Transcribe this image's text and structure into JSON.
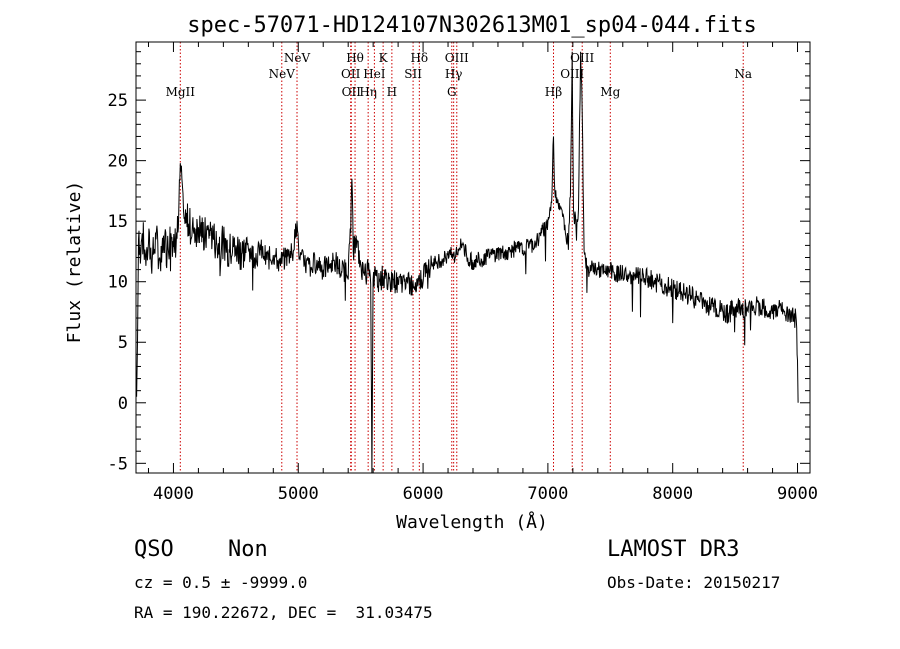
{
  "chart_data": {
    "type": "line",
    "title": "spec-57071-HD124107N302613M01_sp04-044.fits",
    "xlabel": "Wavelength (Å)",
    "ylabel": "Flux (relative)",
    "xlim": [
      3700,
      9100
    ],
    "ylim": [
      -5.8,
      29.8
    ],
    "xticks": [
      4000,
      5000,
      6000,
      7000,
      8000,
      9000
    ],
    "yticks": [
      -5,
      0,
      5,
      10,
      15,
      20,
      25
    ],
    "grid": false,
    "line_color": "#000000",
    "marker_color": "#cc0000",
    "lines": [
      {
        "label": "MgII",
        "x": 4055,
        "row": 3
      },
      {
        "label": "NeV",
        "x": 4868,
        "row": 2
      },
      {
        "label": "NeV",
        "x": 4990,
        "row": 1
      },
      {
        "label": "OII",
        "x": 5420,
        "row": 2
      },
      {
        "label": "OII",
        "x": 5425,
        "row": 3
      },
      {
        "label": "Hθ",
        "x": 5455,
        "row": 1
      },
      {
        "label": "Hη",
        "x": 5560,
        "row": 3
      },
      {
        "label": "HeI",
        "x": 5610,
        "row": 2
      },
      {
        "label": "K",
        "x": 5680,
        "row": 1
      },
      {
        "label": "H",
        "x": 5750,
        "row": 3
      },
      {
        "label": "SII",
        "x": 5920,
        "row": 2
      },
      {
        "label": "Hδ",
        "x": 5970,
        "row": 1
      },
      {
        "label": "OIII",
        "x": 6270,
        "row": 1
      },
      {
        "label": "Hγ",
        "x": 6245,
        "row": 2
      },
      {
        "label": "G",
        "x": 6230,
        "row": 3
      },
      {
        "label": "Hβ",
        "x": 7045,
        "row": 3
      },
      {
        "label": "OIII",
        "x": 7195,
        "row": 2
      },
      {
        "label": "OIII",
        "x": 7275,
        "row": 1
      },
      {
        "label": "Mg",
        "x": 7500,
        "row": 3
      },
      {
        "label": "Na",
        "x": 8565,
        "row": 2
      }
    ],
    "series": [
      {
        "values": [
          [
            3705,
            0.5
          ],
          [
            3712,
            5.0
          ],
          [
            3720,
            13.5
          ],
          [
            3735,
            11.5
          ],
          [
            3750,
            14.0
          ],
          [
            3775,
            12.2
          ],
          [
            3800,
            13.2
          ],
          [
            3830,
            11.8
          ],
          [
            3860,
            13.5
          ],
          [
            3890,
            12.0
          ],
          [
            3920,
            13.8
          ],
          [
            3950,
            12.5
          ],
          [
            3980,
            14.0
          ],
          [
            4010,
            13.0
          ],
          [
            4040,
            14.5
          ],
          [
            4055,
            19.8
          ],
          [
            4068,
            18.5
          ],
          [
            4085,
            15.2
          ],
          [
            4120,
            14.8
          ],
          [
            4160,
            14.2
          ],
          [
            4200,
            14.5
          ],
          [
            4250,
            13.8
          ],
          [
            4300,
            14.2
          ],
          [
            4350,
            13.0
          ],
          [
            4400,
            13.5
          ],
          [
            4450,
            12.5
          ],
          [
            4500,
            13.0
          ],
          [
            4550,
            12.4
          ],
          [
            4600,
            12.8
          ],
          [
            4650,
            12.0
          ],
          [
            4700,
            12.6
          ],
          [
            4750,
            11.8
          ],
          [
            4800,
            12.2
          ],
          [
            4850,
            11.5
          ],
          [
            4900,
            12.0
          ],
          [
            4960,
            12.5
          ],
          [
            4990,
            15.0
          ],
          [
            5010,
            12.0
          ],
          [
            5050,
            11.5
          ],
          [
            5100,
            11.2
          ],
          [
            5150,
            11.8
          ],
          [
            5200,
            11.0
          ],
          [
            5250,
            11.4
          ],
          [
            5300,
            11.6
          ],
          [
            5350,
            10.8
          ],
          [
            5400,
            11.2
          ],
          [
            5420,
            14.0
          ],
          [
            5430,
            18.5
          ],
          [
            5440,
            12.5
          ],
          [
            5460,
            13.5
          ],
          [
            5500,
            11.5
          ],
          [
            5530,
            10.5
          ],
          [
            5560,
            11.0
          ],
          [
            5580,
            9.8
          ],
          [
            5590,
            -5.8
          ],
          [
            5600,
            10.2
          ],
          [
            5620,
            10.5
          ],
          [
            5650,
            10.0
          ],
          [
            5680,
            10.5
          ],
          [
            5720,
            9.8
          ],
          [
            5760,
            10.2
          ],
          [
            5800,
            9.8
          ],
          [
            5850,
            10.0
          ],
          [
            5900,
            9.7
          ],
          [
            5950,
            10.2
          ],
          [
            5990,
            10.2
          ],
          [
            6030,
            11.4
          ],
          [
            6080,
            11.6
          ],
          [
            6130,
            11.8
          ],
          [
            6180,
            12.0
          ],
          [
            6220,
            12.2
          ],
          [
            6260,
            12.0
          ],
          [
            6290,
            12.8
          ],
          [
            6320,
            13.2
          ],
          [
            6350,
            12.0
          ],
          [
            6400,
            11.6
          ],
          [
            6450,
            11.8
          ],
          [
            6500,
            12.0
          ],
          [
            6550,
            12.2
          ],
          [
            6600,
            12.4
          ],
          [
            6650,
            12.4
          ],
          [
            6700,
            12.5
          ],
          [
            6750,
            12.8
          ],
          [
            6800,
            12.6
          ],
          [
            6850,
            13.0
          ],
          [
            6900,
            13.2
          ],
          [
            6950,
            14.0
          ],
          [
            7000,
            15.0
          ],
          [
            7030,
            16.5
          ],
          [
            7045,
            22.0
          ],
          [
            7055,
            17.5
          ],
          [
            7080,
            16.8
          ],
          [
            7110,
            16.0
          ],
          [
            7140,
            14.0
          ],
          [
            7160,
            13.5
          ],
          [
            7180,
            17.0
          ],
          [
            7195,
            29.0
          ],
          [
            7205,
            16.0
          ],
          [
            7225,
            14.5
          ],
          [
            7245,
            16.0
          ],
          [
            7262,
            29.0
          ],
          [
            7275,
            24.0
          ],
          [
            7290,
            12.5
          ],
          [
            7320,
            11.0
          ],
          [
            7360,
            11.2
          ],
          [
            7400,
            11.0
          ],
          [
            7450,
            10.8
          ],
          [
            7500,
            11.0
          ],
          [
            7550,
            10.6
          ],
          [
            7600,
            10.8
          ],
          [
            7650,
            10.4
          ],
          [
            7700,
            10.5
          ],
          [
            7750,
            10.2
          ],
          [
            7800,
            10.3
          ],
          [
            7850,
            10.0
          ],
          [
            7900,
            9.8
          ],
          [
            7950,
            9.6
          ],
          [
            8000,
            9.4
          ],
          [
            8050,
            9.2
          ],
          [
            8100,
            9.0
          ],
          [
            8150,
            8.8
          ],
          [
            8200,
            8.5
          ],
          [
            8250,
            8.3
          ],
          [
            8300,
            8.0
          ],
          [
            8350,
            7.8
          ],
          [
            8400,
            7.6
          ],
          [
            8450,
            7.4
          ],
          [
            8500,
            7.8
          ],
          [
            8550,
            8.0
          ],
          [
            8600,
            7.6
          ],
          [
            8650,
            7.8
          ],
          [
            8700,
            8.0
          ],
          [
            8750,
            7.6
          ],
          [
            8800,
            7.4
          ],
          [
            8850,
            7.8
          ],
          [
            8900,
            7.2
          ],
          [
            8950,
            7.4
          ],
          [
            8990,
            6.8
          ],
          [
            9000,
            3.5
          ],
          [
            9005,
            0.0
          ]
        ]
      }
    ]
  },
  "info": {
    "class": "QSO",
    "subclass": "Non",
    "survey": "LAMOST DR3",
    "cz": "cz = 0.5 ± -9999.0",
    "obs_date": "Obs-Date: 20150217",
    "coords": "RA = 190.22672, DEC =  31.03475"
  }
}
